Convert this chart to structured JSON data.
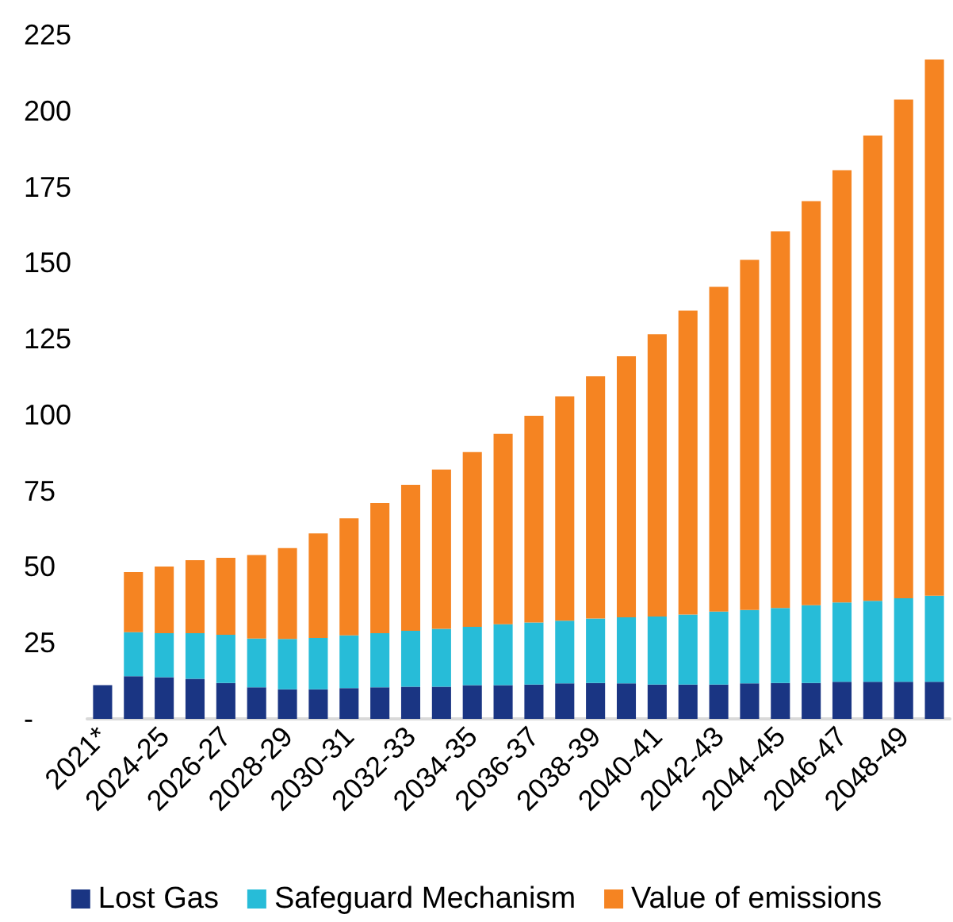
{
  "chart_data": {
    "type": "bar",
    "stacked": true,
    "categories": [
      "2021*",
      null,
      "2024-25",
      null,
      "2026-27",
      null,
      "2028-29",
      null,
      "2030-31",
      null,
      "2032-33",
      null,
      "2034-35",
      null,
      "2036-37",
      null,
      "2038-39",
      null,
      "2040-41",
      null,
      "2042-43",
      null,
      "2044-45",
      null,
      "2046-47",
      null,
      "2048-49",
      null
    ],
    "series": [
      {
        "name": "Lost Gas",
        "color": "#1a3583",
        "values": [
          11.1,
          14,
          13.7,
          13.2,
          11.8,
          10.4,
          9.7,
          9.7,
          10.1,
          10.4,
          10.6,
          10.6,
          11.1,
          11.1,
          11.3,
          11.7,
          11.8,
          11.7,
          11.3,
          11.3,
          11.3,
          11.7,
          11.8,
          11.8,
          12.2,
          12.2,
          12.2,
          12.2
        ]
      },
      {
        "name": "Safeguard Mechanism",
        "color": "#27bcd8",
        "values": [
          null,
          14.5,
          14.5,
          15,
          15.9,
          16,
          16.6,
          16.9,
          17.4,
          17.8,
          18.4,
          19,
          19.2,
          20,
          20.4,
          20.6,
          21.2,
          21.7,
          22.4,
          23,
          24,
          24.1,
          24.7,
          25.6,
          26.1,
          26.6,
          27.5,
          28.3
        ]
      },
      {
        "name": "Value of emissions",
        "color": "#f58422",
        "values": [
          null,
          19.8,
          21.9,
          24,
          25.3,
          27.5,
          29.9,
          34.4,
          38.5,
          42.8,
          48,
          52.4,
          57.5,
          62.7,
          68,
          73.8,
          79.7,
          85.9,
          92.8,
          100,
          106.8,
          115.2,
          123.9,
          132.9,
          142.2,
          153.1,
          164,
          176.4
        ]
      }
    ],
    "ylim": [
      0,
      225
    ],
    "yticks": [
      {
        "value": 0,
        "label": "-"
      },
      25,
      50,
      75,
      100,
      125,
      150,
      175,
      200,
      225
    ],
    "grid": false,
    "legend": "bottom"
  }
}
